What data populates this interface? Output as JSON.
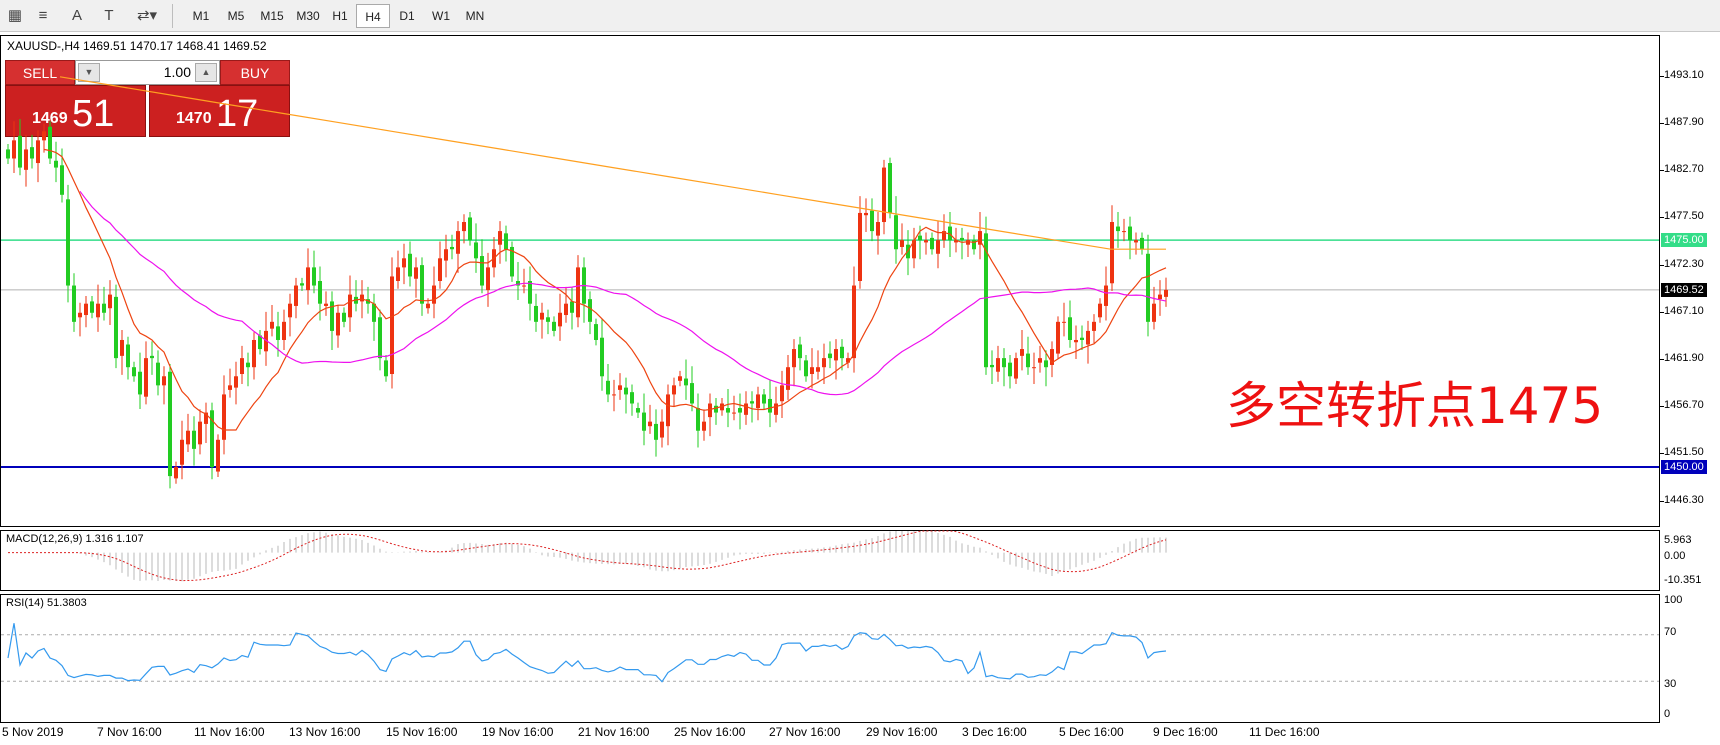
{
  "toolbar": {
    "timeframes": [
      "M1",
      "M5",
      "M15",
      "M30",
      "H1",
      "H4",
      "D1",
      "W1",
      "MN"
    ],
    "active_timeframe": "H4",
    "icons": [
      "grid-icon",
      "fibonacci-icon",
      "text-icon",
      "label-icon",
      "arrows-icon"
    ],
    "icon_letters": {
      "text": "A",
      "label": "T"
    }
  },
  "symbol": {
    "title": "XAUUSD-,H4  1469.51 1470.17 1468.41 1469.52"
  },
  "trade_panel": {
    "sell_label": "SELL",
    "buy_label": "BUY",
    "lot": "1.00",
    "sell_price_small": "1469",
    "sell_price_big": "51",
    "buy_price_small": "1470",
    "buy_price_big": "17",
    "color": "#cc2020"
  },
  "price_axis": {
    "labels": [
      "1493.10",
      "1487.90",
      "1482.70",
      "1477.50",
      "1472.30",
      "1467.10",
      "1461.90",
      "1456.70",
      "1451.50",
      "1446.30"
    ],
    "tag_resistance": "1475.00",
    "tag_current": "1469.52",
    "tag_support": "1450.00"
  },
  "annotation": "多空转折点1475",
  "macd": {
    "title": "MACD(12,26,9) 1.316 1.107",
    "labels": [
      "5.963",
      "0.00",
      "-10.351"
    ]
  },
  "rsi": {
    "title": "RSI(14) 51.3803",
    "labels": [
      "100",
      "70",
      "30",
      "0"
    ]
  },
  "time_axis": [
    "5 Nov 2019",
    "7 Nov 16:00",
    "11 Nov 16:00",
    "13 Nov 16:00",
    "15 Nov 16:00",
    "19 Nov 16:00",
    "21 Nov 16:00",
    "25 Nov 16:00",
    "27 Nov 16:00",
    "29 Nov 16:00",
    "3 Dec 16:00",
    "5 Dec 16:00",
    "9 Dec 16:00",
    "11 Dec 16:00"
  ],
  "chart_data": {
    "type": "candlestick",
    "symbol": "XAUUSD",
    "timeframe": "H4",
    "ylim": [
      1443.5,
      1497.5
    ],
    "horizontal_lines": [
      {
        "value": 1475.0,
        "color": "#33dd88"
      },
      {
        "value": 1469.52,
        "color": "#b0b0b0"
      },
      {
        "value": 1450.0,
        "color": "#0000bb"
      }
    ],
    "colors": {
      "up": "#ee3311",
      "down": "#22cc22",
      "ma_fast": "#ee4411",
      "ma_mid": "#ee11ee",
      "ma_slow": "#ffa020",
      "rsi": "#3399ee",
      "macd_signal": "#dd2222"
    },
    "close_series": [
      1484,
      1486,
      1483,
      1485,
      1484,
      1486,
      1487,
      1484,
      1483,
      1480,
      1470,
      1466,
      1467,
      1468,
      1467,
      1468,
      1467,
      1469,
      1462,
      1464,
      1461,
      1460,
      1458,
      1462,
      1462,
      1459,
      1460,
      1449,
      1450,
      1453,
      1454,
      1452,
      1455,
      1456,
      1450,
      1453,
      1458,
      1459,
      1460,
      1462,
      1461,
      1464,
      1463,
      1465,
      1466,
      1464,
      1466,
      1468,
      1470,
      1470,
      1472,
      1470,
      1468,
      1468,
      1465,
      1467,
      1466,
      1469,
      1468,
      1469,
      1468,
      1466,
      1462,
      1460,
      1471,
      1472,
      1473,
      1471,
      1472,
      1468,
      1468,
      1470,
      1473,
      1474,
      1474,
      1476,
      1477,
      1475,
      1473,
      1470,
      1472,
      1474,
      1476,
      1474,
      1471,
      1470,
      1470,
      1468,
      1466,
      1467,
      1466,
      1465,
      1467,
      1468,
      1467,
      1472,
      1468,
      1466,
      1464,
      1460,
      1458,
      1458,
      1459,
      1458,
      1457,
      1456,
      1454,
      1455,
      1453,
      1455,
      1458,
      1459,
      1460,
      1459,
      1457,
      1454,
      1455,
      1457,
      1456,
      1457,
      1456,
      1456,
      1456,
      1457,
      1457,
      1458,
      1457,
      1456,
      1457,
      1459,
      1461,
      1463,
      1462,
      1460,
      1461,
      1461,
      1462,
      1462,
      1463,
      1462,
      1462,
      1470,
      1478,
      1478,
      1476,
      1477,
      1483,
      1478,
      1474,
      1475,
      1473,
      1475,
      1475,
      1475,
      1474,
      1475,
      1476,
      1475,
      1475,
      1475,
      1475,
      1474,
      1476,
      1461,
      1461,
      1462,
      1461,
      1460,
      1462,
      1463,
      1461,
      1461,
      1462,
      1461,
      1463,
      1466,
      1466,
      1464,
      1464,
      1464,
      1465,
      1466,
      1468,
      1470,
      1477,
      1476,
      1476,
      1475,
      1475,
      1474,
      1466,
      1468,
      1469,
      1469.52
    ],
    "ma_slow_series": [
      1493,
      1492,
      1491,
      1490,
      1489,
      1488,
      1487,
      1486,
      1485,
      1484,
      1483,
      1482,
      1481,
      1480,
      1479,
      1478,
      1477,
      1476,
      1475,
      1474,
      1474
    ],
    "rsi_levels": [
      70,
      30
    ],
    "rsi_range": [
      0,
      100
    ],
    "macd_range": [
      -10.351,
      5.963
    ]
  }
}
